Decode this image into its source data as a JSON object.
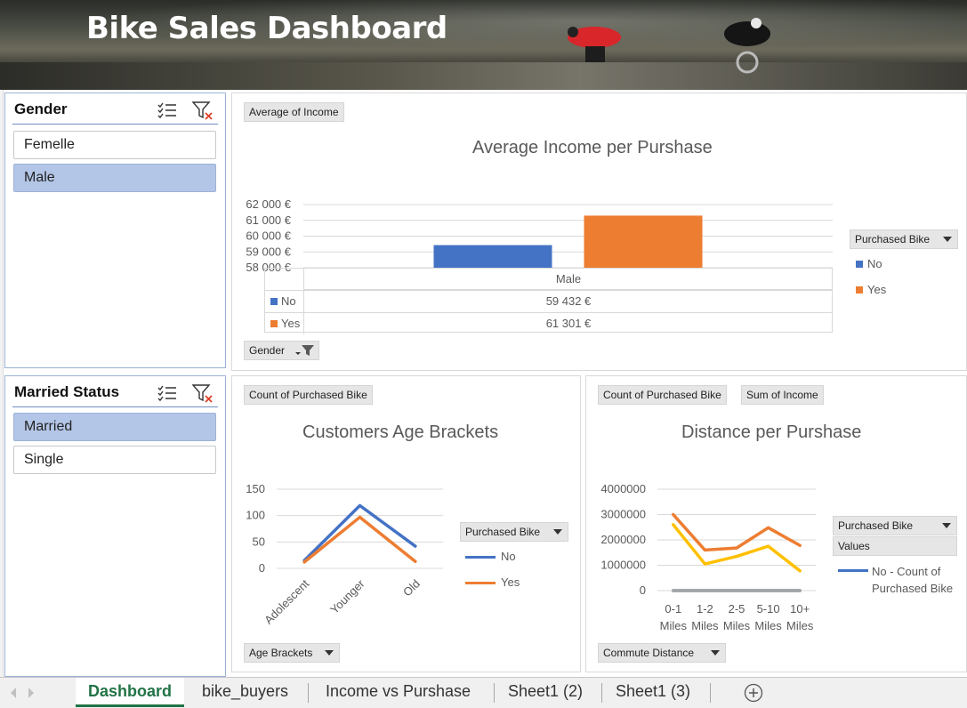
{
  "banner": {
    "title": "Bike Sales Dashboard"
  },
  "slicers": {
    "gender": {
      "title": "Gender",
      "items": [
        {
          "label": "Femelle",
          "selected": false
        },
        {
          "label": "Male",
          "selected": true
        }
      ]
    },
    "married": {
      "title": "Married Status",
      "items": [
        {
          "label": "Married",
          "selected": true
        },
        {
          "label": "Single",
          "selected": false
        }
      ]
    }
  },
  "income_chart": {
    "field_button": "Average of Income",
    "axis_button": "Gender",
    "legend_title": "Purchased Bike",
    "table_header": "Male",
    "chart_data": {
      "type": "bar",
      "title": "Average Income per Purshase",
      "categories": [
        "Male"
      ],
      "series": [
        {
          "name": "No",
          "values": [
            59432
          ],
          "color": "#4472c4",
          "label": "59 432 €"
        },
        {
          "name": "Yes",
          "values": [
            61301
          ],
          "color": "#ed7d31",
          "label": "61 301 €"
        }
      ],
      "yticks": [
        "62 000 €",
        "61 000 €",
        "60 000 €",
        "59 000 €",
        "58 000 €"
      ],
      "ylim": [
        58000,
        62000
      ],
      "legend": "right"
    }
  },
  "age_chart": {
    "field_button": "Count of Purchased Bike",
    "axis_button": "Age Brackets",
    "legend_title": "Purchased Bike",
    "chart_data": {
      "type": "line",
      "title": "Customers Age Brackets",
      "categories": [
        "Adolescent",
        "Younger",
        "Old"
      ],
      "series": [
        {
          "name": "No",
          "values": [
            15,
            119,
            42
          ],
          "color": "#4472c4"
        },
        {
          "name": "Yes",
          "values": [
            12,
            97,
            13
          ],
          "color": "#ed7d31"
        }
      ],
      "yticks": [
        "150",
        "100",
        "50",
        "0"
      ],
      "ylim": [
        0,
        150
      ],
      "legend": "right"
    }
  },
  "distance_chart": {
    "field_buttons": [
      "Count of Purchased Bike",
      "Sum of Income"
    ],
    "axis_button": "Commute Distance",
    "legend_title": "Purchased Bike",
    "legend_values": "Values",
    "chart_data": {
      "type": "line",
      "title": "Distance per Purshase",
      "categories": [
        "0-1 Miles",
        "1-2 Miles",
        "2-5 Miles",
        "5-10 Miles",
        "10+ Miles"
      ],
      "series": [
        {
          "name": "No - Count of Purchased Bike",
          "values": [
            60,
            40,
            30,
            25,
            15
          ],
          "color": "#4472c4"
        },
        {
          "values": [
            3000000,
            1600000,
            1680000,
            2480000,
            1780000
          ],
          "color": "#ed7d31"
        },
        {
          "values": [
            2600000,
            1050000,
            1350000,
            1750000,
            780000
          ],
          "color": "#ffc000"
        },
        {
          "values": [
            30,
            28,
            20,
            22,
            12
          ],
          "color": "#a5a5a5"
        }
      ],
      "yticks": [
        "4000000",
        "3000000",
        "2000000",
        "1000000",
        "0"
      ],
      "ylim": [
        0,
        4000000
      ],
      "legend": "right"
    }
  },
  "tabs": [
    {
      "label": "Dashboard",
      "active": true
    },
    {
      "label": "bike_buyers"
    },
    {
      "label": "Income vs Purshase"
    },
    {
      "label": "Sheet1 (2)"
    },
    {
      "label": "Sheet1 (3)"
    }
  ],
  "icons": {
    "multiselect": "multi-select-icon",
    "clear_filter": "clear-filter-icon",
    "add_sheet": "add-sheet-icon",
    "dropdown": "dropdown-arrow-icon"
  }
}
